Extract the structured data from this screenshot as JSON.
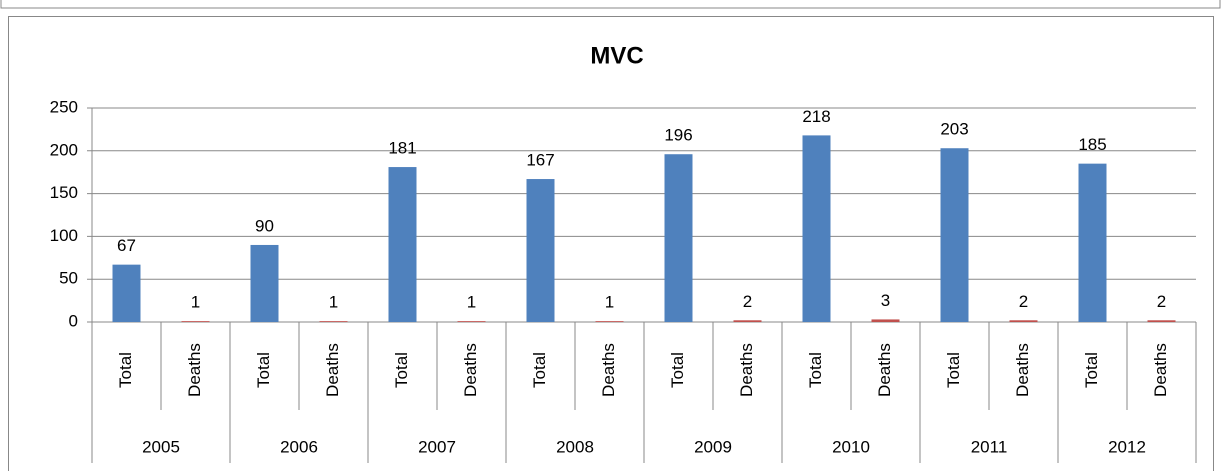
{
  "chart_data": {
    "type": "bar",
    "title": "MVC",
    "categories": [
      "Total",
      "Deaths",
      "Total",
      "Deaths",
      "Total",
      "Deaths",
      "Total",
      "Deaths",
      "Total",
      "Deaths",
      "Total",
      "Deaths",
      "Total",
      "Deaths",
      "Total",
      "Deaths"
    ],
    "groups": [
      "2005",
      "2006",
      "2007",
      "2008",
      "2009",
      "2010",
      "2011",
      "2012"
    ],
    "values": [
      67,
      1,
      90,
      1,
      181,
      1,
      167,
      1,
      196,
      2,
      218,
      3,
      203,
      2,
      185,
      2
    ],
    "colors": [
      "#4f81bd",
      "#c0504d",
      "#4f81bd",
      "#c0504d",
      "#4f81bd",
      "#c0504d",
      "#4f81bd",
      "#c0504d",
      "#4f81bd",
      "#c0504d",
      "#4f81bd",
      "#c0504d",
      "#4f81bd",
      "#c0504d",
      "#4f81bd",
      "#c0504d"
    ],
    "ylim": [
      0,
      250
    ],
    "yticks": [
      0,
      50,
      100,
      150,
      200,
      250
    ],
    "grid": true
  }
}
